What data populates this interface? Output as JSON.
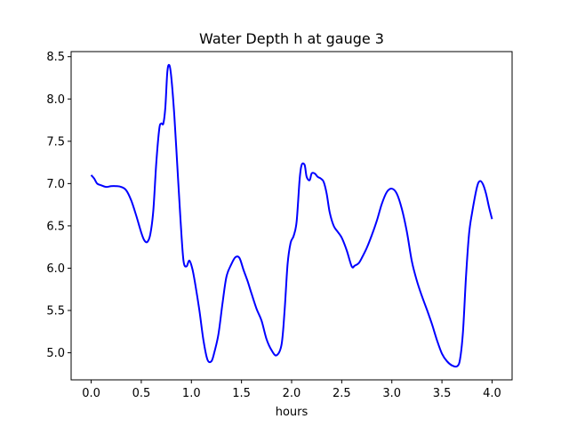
{
  "chart_data": {
    "type": "line",
    "title": "Water Depth h at gauge 3",
    "xlabel": "hours",
    "ylabel": "",
    "xlim": [
      -0.2,
      4.2
    ],
    "ylim": [
      4.68,
      8.56
    ],
    "xticks": [
      0.0,
      0.5,
      1.0,
      1.5,
      2.0,
      2.5,
      3.0,
      3.5,
      4.0
    ],
    "xtick_labels": [
      "0.0",
      "0.5",
      "1.0",
      "1.5",
      "2.0",
      "2.5",
      "3.0",
      "3.5",
      "4.0"
    ],
    "yticks": [
      5.0,
      5.5,
      6.0,
      6.5,
      7.0,
      7.5,
      8.0,
      8.5
    ],
    "ytick_labels": [
      "5.0",
      "5.5",
      "6.0",
      "6.5",
      "7.0",
      "7.5",
      "8.0",
      "8.5"
    ],
    "grid": false,
    "series": [
      {
        "color": "#0000ff",
        "x": [
          0.0,
          0.03,
          0.06,
          0.1,
          0.15,
          0.2,
          0.25,
          0.3,
          0.35,
          0.4,
          0.45,
          0.5,
          0.53,
          0.56,
          0.59,
          0.62,
          0.65,
          0.68,
          0.7,
          0.72,
          0.74,
          0.76,
          0.78,
          0.8,
          0.83,
          0.86,
          0.89,
          0.92,
          0.95,
          0.98,
          1.01,
          1.04,
          1.08,
          1.12,
          1.16,
          1.2,
          1.23,
          1.27,
          1.31,
          1.35,
          1.4,
          1.44,
          1.48,
          1.52,
          1.56,
          1.6,
          1.65,
          1.7,
          1.75,
          1.8,
          1.85,
          1.9,
          1.93,
          1.96,
          1.99,
          2.02,
          2.05,
          2.08,
          2.1,
          2.13,
          2.15,
          2.18,
          2.2,
          2.23,
          2.26,
          2.29,
          2.32,
          2.35,
          2.38,
          2.42,
          2.46,
          2.5,
          2.55,
          2.6,
          2.63,
          2.67,
          2.7,
          2.75,
          2.8,
          2.85,
          2.9,
          2.95,
          3.0,
          3.05,
          3.1,
          3.15,
          3.2,
          3.25,
          3.3,
          3.35,
          3.4,
          3.45,
          3.5,
          3.55,
          3.6,
          3.65,
          3.68,
          3.71,
          3.74,
          3.77,
          3.8,
          3.85,
          3.88,
          3.91,
          3.94,
          3.97,
          4.0
        ],
        "y": [
          7.1,
          7.06,
          7.0,
          6.98,
          6.96,
          6.97,
          6.97,
          6.96,
          6.92,
          6.8,
          6.62,
          6.42,
          6.33,
          6.31,
          6.4,
          6.68,
          7.25,
          7.65,
          7.71,
          7.71,
          7.9,
          8.32,
          8.4,
          8.25,
          7.8,
          7.2,
          6.6,
          6.1,
          6.02,
          6.09,
          5.99,
          5.8,
          5.5,
          5.15,
          4.92,
          4.9,
          5.01,
          5.22,
          5.58,
          5.9,
          6.05,
          6.13,
          6.12,
          5.98,
          5.85,
          5.7,
          5.52,
          5.38,
          5.16,
          5.03,
          4.97,
          5.1,
          5.5,
          6.05,
          6.3,
          6.38,
          6.55,
          7.05,
          7.22,
          7.22,
          7.08,
          7.04,
          7.12,
          7.12,
          7.08,
          7.06,
          7.02,
          6.88,
          6.66,
          6.5,
          6.43,
          6.36,
          6.21,
          6.02,
          6.03,
          6.06,
          6.12,
          6.24,
          6.39,
          6.56,
          6.76,
          6.9,
          6.94,
          6.88,
          6.7,
          6.43,
          6.08,
          5.85,
          5.67,
          5.51,
          5.34,
          5.15,
          4.99,
          4.9,
          4.85,
          4.84,
          4.92,
          5.25,
          5.9,
          6.4,
          6.65,
          6.96,
          7.03,
          6.99,
          6.88,
          6.72,
          6.58
        ]
      }
    ]
  }
}
